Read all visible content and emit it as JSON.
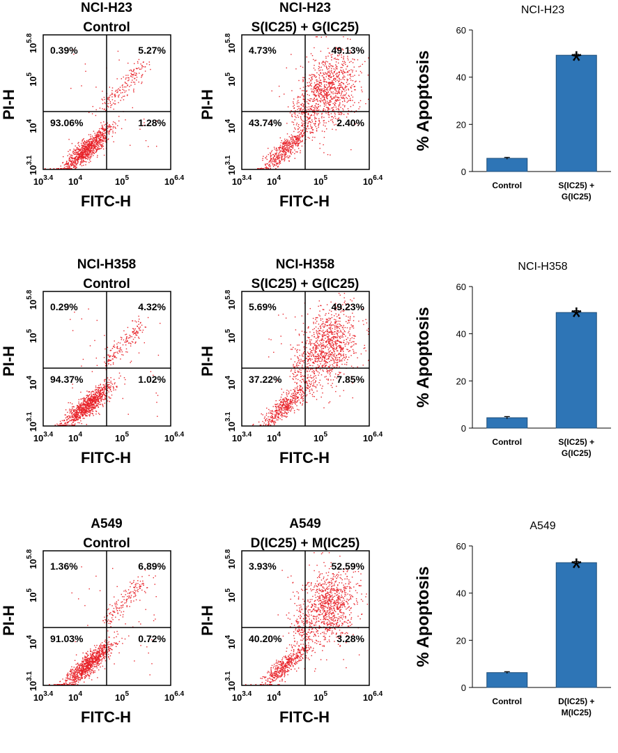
{
  "colors": {
    "dots": "#e8232a",
    "bar_fill": "#2e75b6",
    "bar_stroke": "#1f4e79"
  },
  "flow_axes": {
    "x_label": "FITC-H",
    "y_label": "PI-H",
    "x_ticks": [
      {
        "base": "10",
        "exp": "3.4"
      },
      {
        "base": "10",
        "exp": "4"
      },
      {
        "base": "10",
        "exp": "5"
      },
      {
        "base": "10",
        "exp": "6.4"
      }
    ],
    "y_ticks": [
      {
        "base": "10",
        "exp": "3.1"
      },
      {
        "base": "10",
        "exp": "4"
      },
      {
        "base": "10",
        "exp": "5"
      },
      {
        "base": "10",
        "exp": "5.8"
      }
    ]
  },
  "flow_panels": [
    {
      "title_line1": "NCI-H23",
      "title_line2": "Control",
      "ul": "0.39%",
      "ur": "5.27%",
      "ll": "93.06%",
      "lr": "1.28%"
    },
    {
      "title_line1": "NCI-H23",
      "title_line2": "S(IC25) + G(IC25)",
      "ul": "4.73%",
      "ur": "49.13%",
      "ll": "43.74%",
      "lr": "2.40%"
    },
    {
      "title_line1": "NCI-H358",
      "title_line2": "Control",
      "ul": "0.29%",
      "ur": "4.32%",
      "ll": "94.37%",
      "lr": "1.02%"
    },
    {
      "title_line1": "NCI-H358",
      "title_line2": "S(IC25) + G(IC25)",
      "ul": "5.69%",
      "ur": "49.23%",
      "ll": "37.22%",
      "lr": "7.85%"
    },
    {
      "title_line1": "A549",
      "title_line2": "Control",
      "ul": "1.36%",
      "ur": "6.89%",
      "ll": "91.03%",
      "lr": "0.72%"
    },
    {
      "title_line1": "A549",
      "title_line2": "D(IC25) + M(IC25)",
      "ul": "3.93%",
      "ur": "52.59%",
      "ll": "40.20%",
      "lr": "3.28%"
    }
  ],
  "chart_data": [
    {
      "type": "bar",
      "title": "NCI-H23",
      "ylabel": "% Apoptosis",
      "categories": [
        [
          "Control"
        ],
        [
          "S(IC25) +",
          "G(IC25)"
        ]
      ],
      "values": [
        5.6,
        49.3
      ],
      "errors": [
        0.4,
        0.4
      ],
      "ylim": [
        0,
        60
      ],
      "yticks": [
        "0",
        "20",
        "40",
        "60"
      ],
      "significance_marker": "*",
      "marker_on_category": 1
    },
    {
      "type": "bar",
      "title": "NCI-H358",
      "ylabel": "% Apoptosis",
      "categories": [
        [
          "Control"
        ],
        [
          "S(IC25) +",
          "G(IC25)"
        ]
      ],
      "values": [
        4.4,
        49.0
      ],
      "errors": [
        0.5,
        0.8
      ],
      "ylim": [
        0,
        60
      ],
      "yticks": [
        "0",
        "20",
        "40",
        "60"
      ],
      "significance_marker": "*",
      "marker_on_category": 1
    },
    {
      "type": "bar",
      "title": "A549",
      "ylabel": "% Apoptosis",
      "categories": [
        [
          "Control"
        ],
        [
          "D(IC25) +",
          "M(IC25)"
        ]
      ],
      "values": [
        6.3,
        52.9
      ],
      "errors": [
        0.4,
        0.5
      ],
      "ylim": [
        0,
        60
      ],
      "yticks": [
        "0",
        "20",
        "40",
        "60"
      ],
      "significance_marker": "*",
      "marker_on_category": 1
    }
  ]
}
